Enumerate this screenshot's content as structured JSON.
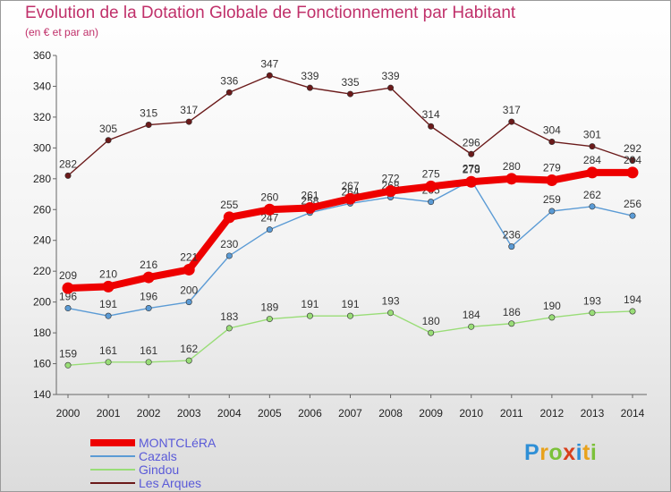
{
  "title": "Evolution de la Dotation Globale de Fonctionnement par Habitant",
  "subtitle": "(en € et par an)",
  "logo": {
    "letters": [
      "P",
      "r",
      "o",
      "x",
      "i",
      "t",
      "i"
    ],
    "colors": [
      "#2e8fd6",
      "#e8a21c",
      "#7cc13a",
      "#d8401c",
      "#2e8fd6",
      "#e8a21c",
      "#7cc13a"
    ]
  },
  "chart_data": {
    "type": "line",
    "x": [
      2000,
      2001,
      2002,
      2003,
      2004,
      2005,
      2006,
      2007,
      2008,
      2009,
      2010,
      2011,
      2012,
      2013,
      2014
    ],
    "ylim": [
      140,
      360
    ],
    "yticks": [
      140,
      160,
      180,
      200,
      220,
      240,
      260,
      280,
      300,
      320,
      340,
      360
    ],
    "grid": false,
    "legend_position": "bottom-left",
    "series": [
      {
        "name": "Les Arques",
        "color": "#6b1a1a",
        "values": [
          282,
          305,
          315,
          317,
          336,
          347,
          339,
          335,
          339,
          314,
          296,
          317,
          304,
          301,
          292
        ]
      },
      {
        "name": "Gindou",
        "color": "#99dd77",
        "values": [
          159,
          161,
          161,
          162,
          183,
          189,
          191,
          191,
          193,
          180,
          184,
          186,
          190,
          193,
          194
        ]
      },
      {
        "name": "Cazals",
        "color": "#5b9bd5",
        "values": [
          196,
          191,
          196,
          200,
          230,
          247,
          258,
          264,
          268,
          265,
          279,
          236,
          259,
          262,
          256
        ]
      },
      {
        "name": "MONTCLéRA",
        "color": "#ee0000",
        "values": [
          209,
          210,
          216,
          221,
          255,
          260,
          261,
          267,
          272,
          275,
          278,
          280,
          279,
          284,
          284
        ]
      }
    ],
    "legend_order": [
      "MONTCLéRA",
      "Cazals",
      "Gindou",
      "Les Arques"
    ]
  }
}
